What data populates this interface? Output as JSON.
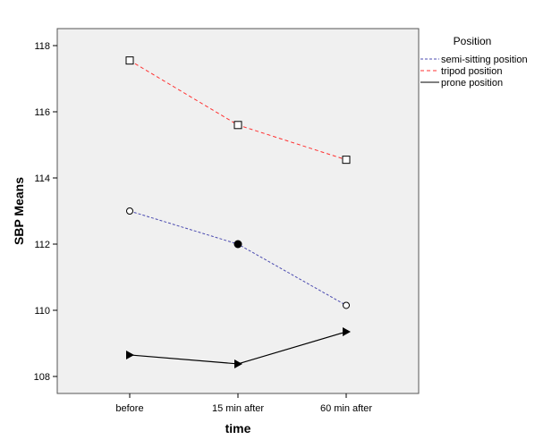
{
  "chart_data": {
    "type": "line",
    "title": "",
    "xlabel": "time",
    "ylabel": "SBP Means",
    "categories": [
      "before",
      "15 min after",
      "60 min after"
    ],
    "ylim": [
      107.5,
      118.5
    ],
    "yticks": [
      108,
      110,
      112,
      114,
      116,
      118
    ],
    "legend_title": "Position",
    "legend_position": "right",
    "grid": false,
    "series": [
      {
        "name": "semi-sitting position",
        "values": [
          113.0,
          112.0,
          110.15
        ],
        "color": "#4b4bb0",
        "dash": "3,2",
        "markers": [
          "circle-open",
          "circle-filled",
          "circle-open"
        ]
      },
      {
        "name": "tripod position",
        "values": [
          117.55,
          115.6,
          114.55
        ],
        "color": "#ff3030",
        "dash": "4,3",
        "markers": [
          "square",
          "square",
          "square"
        ]
      },
      {
        "name": "prone position",
        "values": [
          108.65,
          108.38,
          109.35
        ],
        "color": "#000000",
        "dash": "",
        "markers": [
          "triangle",
          "triangle",
          "triangle"
        ]
      }
    ]
  }
}
